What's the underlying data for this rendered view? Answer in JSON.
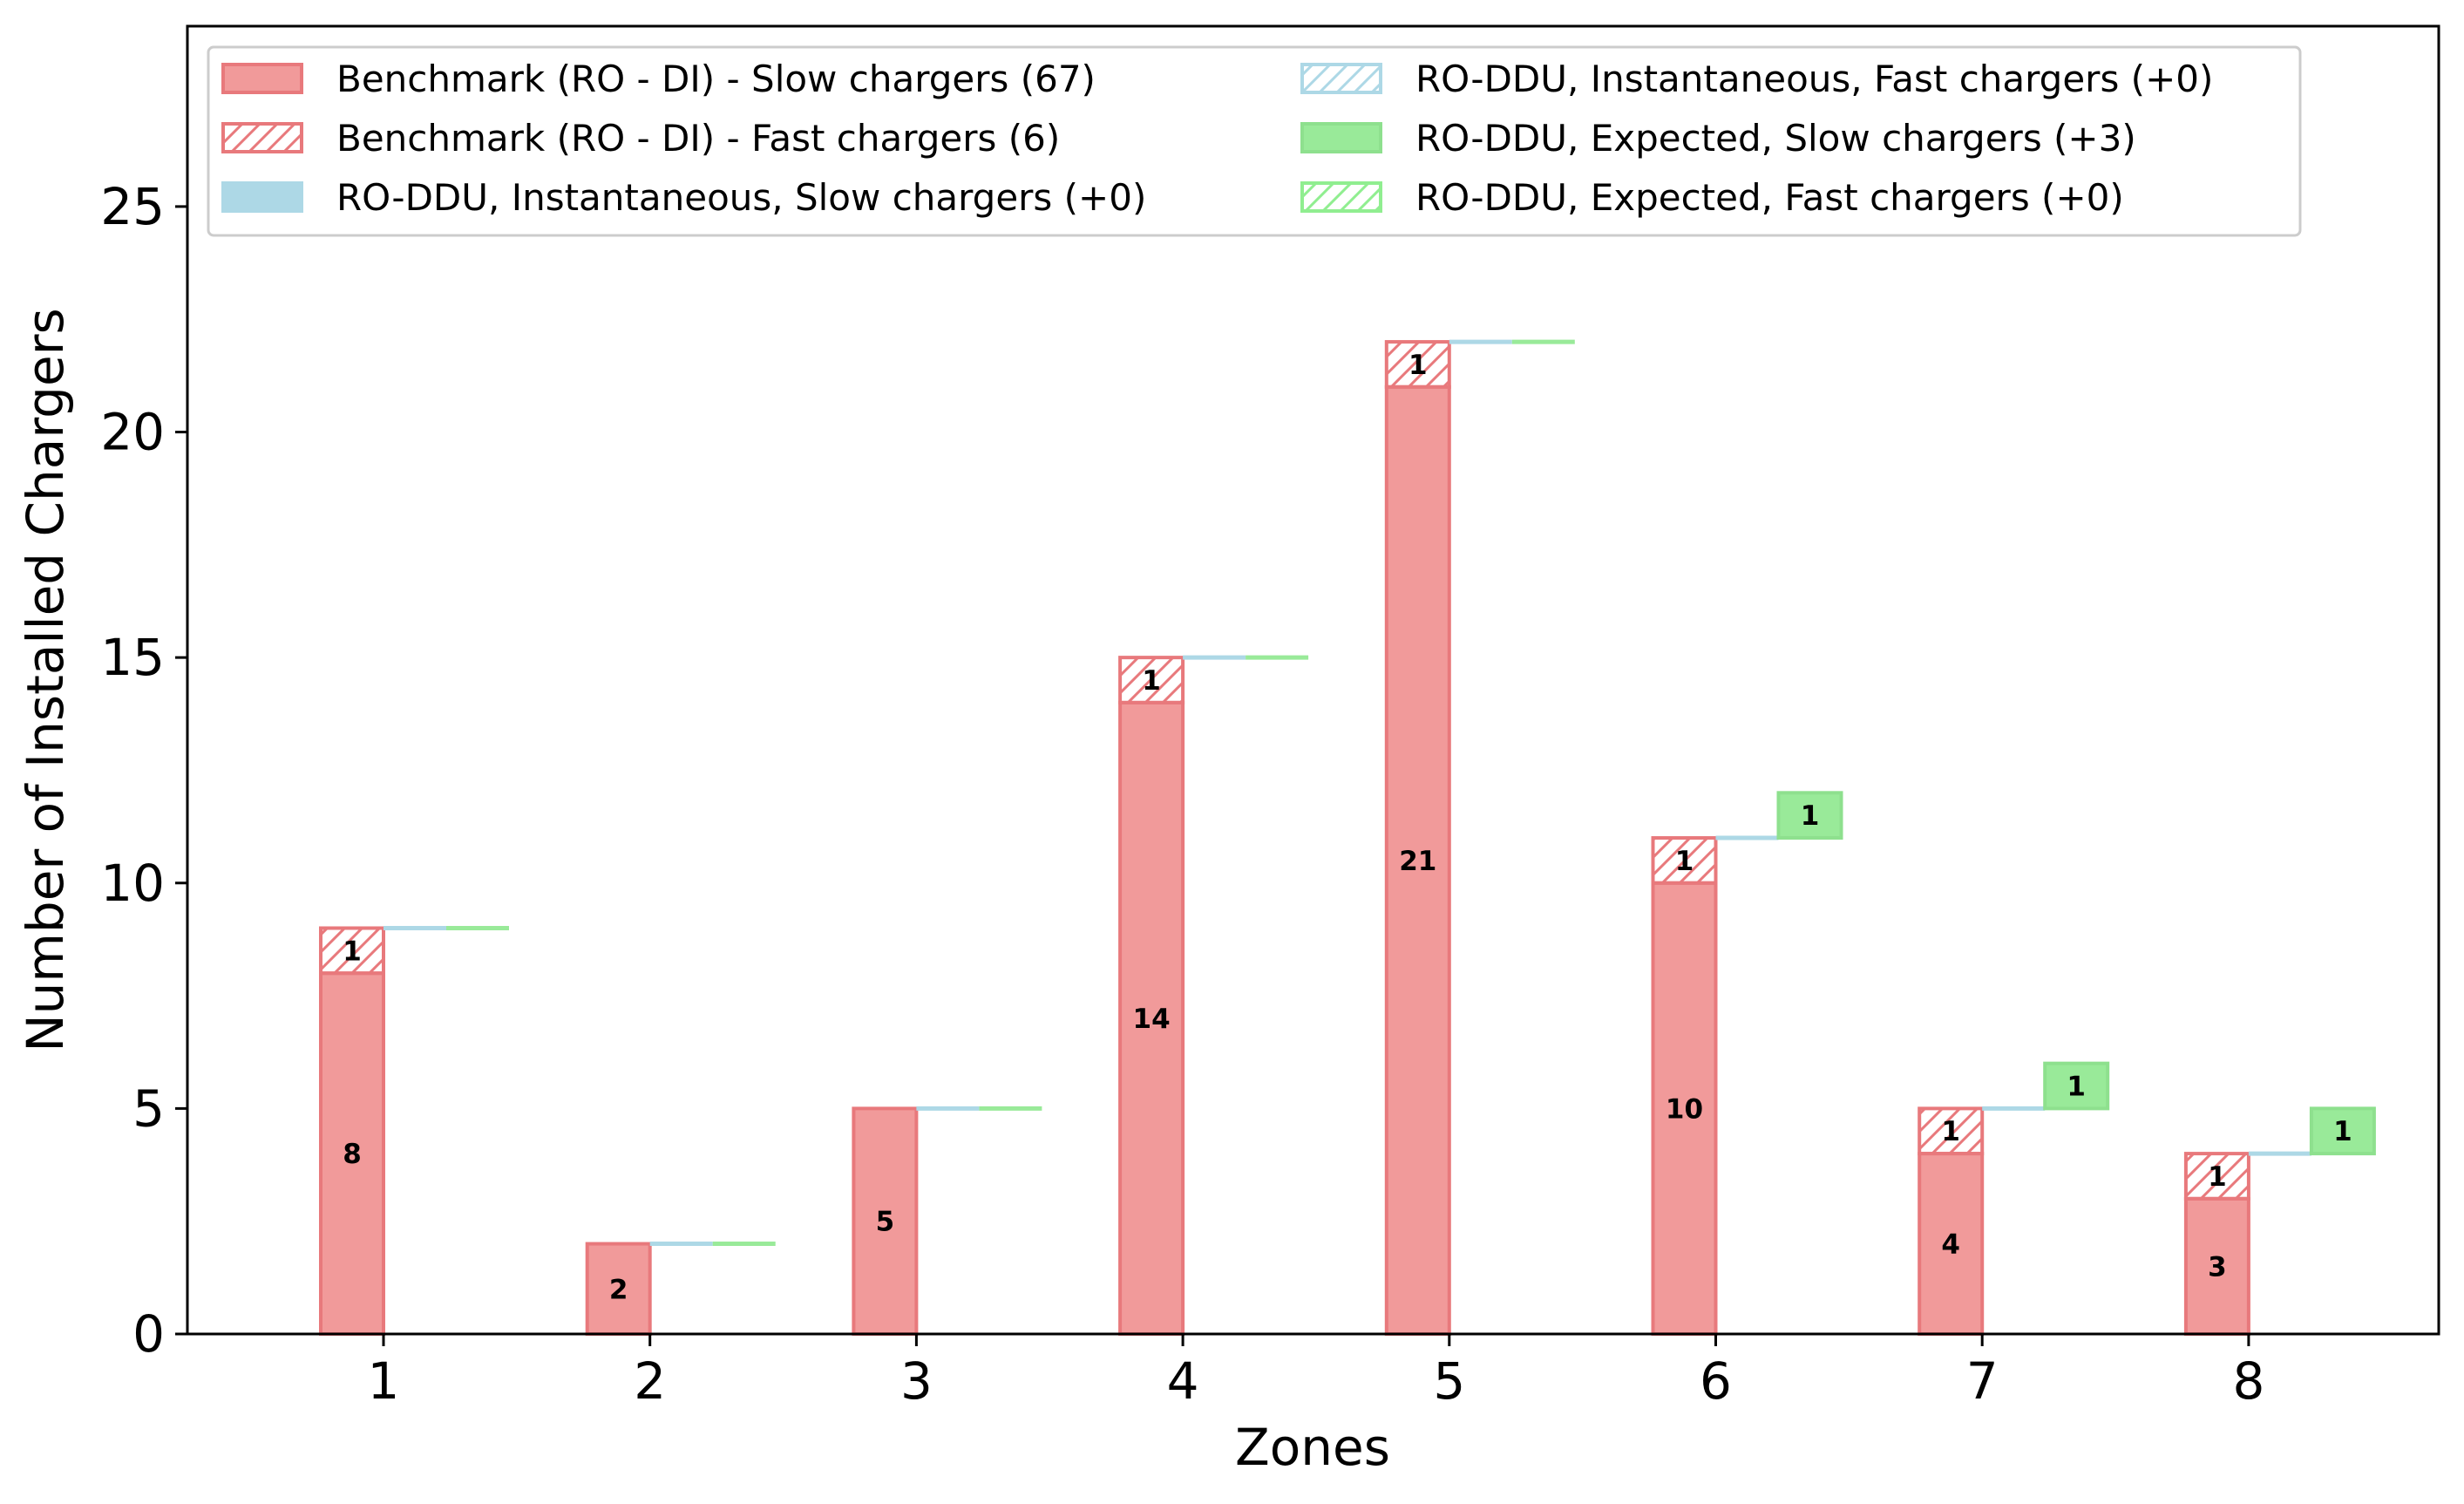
{
  "chart_data": {
    "type": "bar",
    "title": "",
    "xlabel": "Zones",
    "ylabel": "Number of Installed Chargers",
    "categories": [
      "1",
      "2",
      "3",
      "4",
      "5",
      "6",
      "7",
      "8"
    ],
    "ylim": [
      0,
      29
    ],
    "yticks": [
      "0",
      "5",
      "10",
      "15",
      "20",
      "25"
    ],
    "grid": false,
    "legend_position": "top-left",
    "series": [
      {
        "name": "Benchmark (RO - DI) - Slow chargers (67)",
        "style": "solid",
        "color": "#f19a9a",
        "edge": "#e8797c",
        "values": [
          8,
          2,
          5,
          14,
          21,
          10,
          4,
          3
        ],
        "labels": [
          "8",
          "2",
          "5",
          "14",
          "21",
          "10",
          "4",
          "3"
        ]
      },
      {
        "name": "Benchmark (RO - DI) - Fast chargers (6)",
        "style": "hatch",
        "color": "#ffffff",
        "edge": "#e8797c",
        "values": [
          1,
          0,
          0,
          1,
          1,
          1,
          1,
          1
        ],
        "labels": [
          "1",
          "",
          "",
          "1",
          "1",
          "1",
          "1",
          "1"
        ]
      },
      {
        "name": "RO-DDU, Instantaneous, Slow chargers (+0)",
        "style": "solid",
        "color": "#add8e6",
        "edge": "#add8e6",
        "values": [
          0,
          0,
          0,
          0,
          0,
          0,
          0,
          0
        ],
        "labels": [
          "",
          "",
          "",
          "",
          "",
          "",
          "",
          ""
        ]
      },
      {
        "name": "RO-DDU, Instantaneous, Fast chargers (+0)",
        "style": "hatch",
        "color": "#ffffff",
        "edge": "#add8e6",
        "values": [
          0,
          0,
          0,
          0,
          0,
          0,
          0,
          0
        ],
        "labels": [
          "",
          "",
          "",
          "",
          "",
          "",
          "",
          ""
        ]
      },
      {
        "name": "RO-DDU, Expected, Slow chargers (+3)",
        "style": "solid",
        "color": "#99ea99",
        "edge": "#8ee08e",
        "values": [
          0,
          0,
          0,
          0,
          0,
          1,
          1,
          1
        ],
        "labels": [
          "",
          "",
          "",
          "",
          "",
          "1",
          "1",
          "1"
        ]
      },
      {
        "name": "RO-DDU, Expected, Fast chargers (+0)",
        "style": "hatch",
        "color": "#ffffff",
        "edge": "#90ee90",
        "values": [
          0,
          0,
          0,
          0,
          0,
          0,
          0,
          0
        ],
        "labels": [
          "",
          "",
          "",
          "",
          "",
          "",
          "",
          ""
        ]
      }
    ]
  }
}
